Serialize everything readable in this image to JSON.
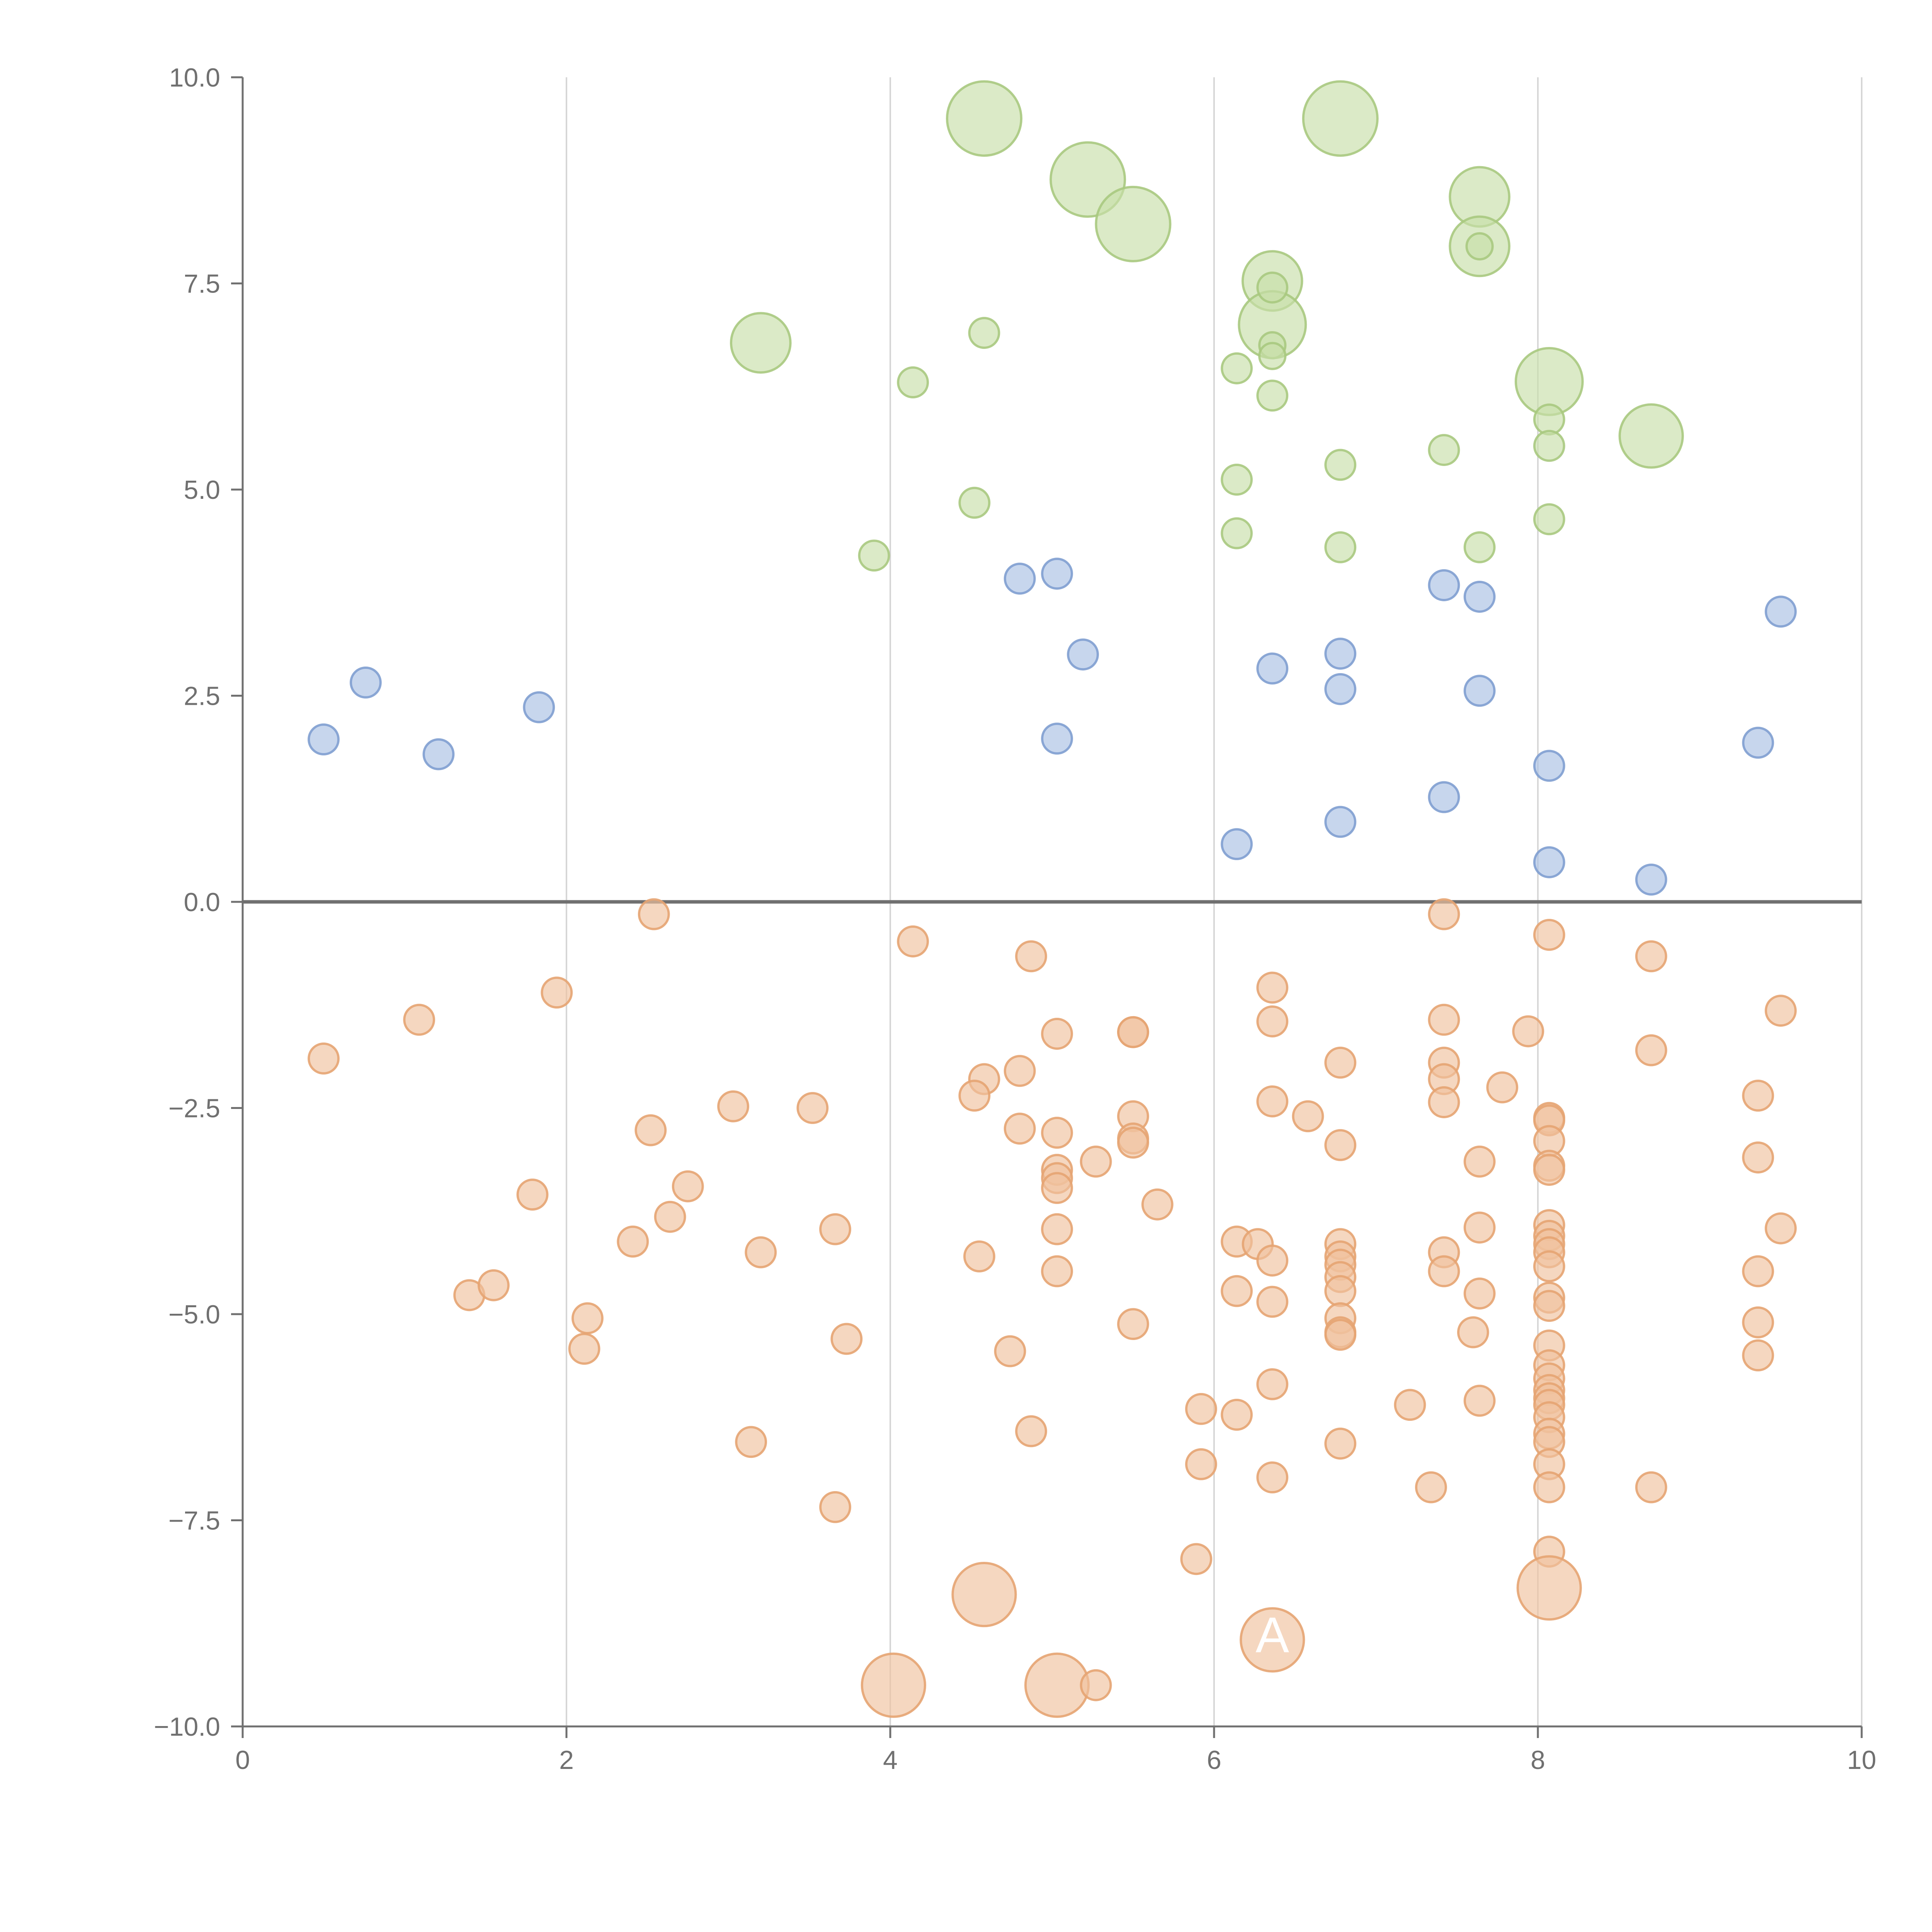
{
  "chart_data": {
    "type": "scatter",
    "title": "",
    "xlabel": "",
    "ylabel": "",
    "xlim": [
      0,
      10
    ],
    "ylim": [
      -10,
      10
    ],
    "x_ticks": [
      0,
      2,
      4,
      6,
      8,
      10
    ],
    "x_tick_labels": [
      "0",
      "2",
      "4",
      "6",
      "8",
      "10"
    ],
    "y_ticks": [
      10,
      7.5,
      5,
      2.5,
      0,
      -2.5,
      -5,
      -7.5,
      -10
    ],
    "y_tick_labels": [
      "10.0",
      "7.5",
      "5.0",
      "2.5",
      "0.0",
      "−2.5",
      "−5.0",
      "−7.5",
      "−10.0"
    ],
    "grid": "vertical",
    "zero_line": true,
    "series": [
      {
        "color": "#a9c97f",
        "fill": "#c8dea9",
        "points": [
          [
            4.58,
            9.5,
            2
          ],
          [
            6.78,
            9.5,
            2
          ],
          [
            5.22,
            8.76,
            2
          ],
          [
            5.5,
            8.22,
            2
          ],
          [
            7.64,
            8.55,
            1.6
          ],
          [
            7.64,
            7.95,
            1.6
          ],
          [
            7.64,
            7.95,
            0.7
          ],
          [
            6.36,
            7.53,
            1.6
          ],
          [
            6.36,
            7.0,
            1.8
          ],
          [
            3.2,
            6.78,
            1.6
          ],
          [
            8.07,
            6.31,
            1.8
          ],
          [
            8.7,
            5.65,
            1.7
          ],
          [
            6.36,
            7.45,
            0.8
          ],
          [
            6.36,
            6.75,
            0.7
          ],
          [
            6.36,
            6.62,
            0.7
          ],
          [
            4.58,
            6.9,
            0.8
          ],
          [
            4.14,
            6.3,
            0.8
          ],
          [
            6.14,
            6.47,
            0.8
          ],
          [
            6.36,
            6.14,
            0.8
          ],
          [
            8.07,
            5.85,
            0.8
          ],
          [
            8.07,
            5.53,
            0.8
          ],
          [
            7.42,
            5.48,
            0.8
          ],
          [
            6.78,
            5.3,
            0.8
          ],
          [
            6.14,
            5.12,
            0.8
          ],
          [
            4.52,
            4.84,
            0.8
          ],
          [
            6.14,
            4.47,
            0.8
          ],
          [
            6.78,
            4.3,
            0.8
          ],
          [
            7.64,
            4.3,
            0.8
          ],
          [
            8.07,
            4.64,
            0.8
          ],
          [
            3.9,
            4.2,
            0.8
          ]
        ]
      },
      {
        "color": "#7f9fd0",
        "fill": "#a9c0e3",
        "points": [
          [
            0.5,
            1.97,
            0.8
          ],
          [
            0.76,
            2.66,
            0.8
          ],
          [
            1.21,
            1.79,
            0.8
          ],
          [
            1.83,
            2.36,
            0.8
          ],
          [
            4.8,
            3.92,
            0.8
          ],
          [
            5.03,
            3.98,
            0.8
          ],
          [
            5.19,
            3.0,
            0.8
          ],
          [
            5.03,
            1.98,
            0.8
          ],
          [
            6.36,
            2.83,
            0.8
          ],
          [
            6.78,
            3.01,
            0.8
          ],
          [
            6.78,
            2.58,
            0.8
          ],
          [
            7.42,
            3.84,
            0.8
          ],
          [
            7.64,
            3.7,
            0.8
          ],
          [
            7.64,
            2.56,
            0.8
          ],
          [
            9.5,
            3.52,
            0.8
          ],
          [
            9.36,
            1.93,
            0.8
          ],
          [
            8.07,
            1.65,
            0.8
          ],
          [
            7.42,
            1.27,
            0.8
          ],
          [
            6.78,
            0.97,
            0.8
          ],
          [
            6.14,
            0.7,
            0.8
          ],
          [
            8.07,
            0.48,
            0.8
          ],
          [
            8.7,
            0.27,
            0.8
          ]
        ]
      },
      {
        "color": "#e6a472",
        "fill": "#f0c19e",
        "points": [
          [
            2.54,
            -0.15,
            0.8
          ],
          [
            4.14,
            -0.48,
            0.8
          ],
          [
            4.87,
            -0.66,
            0.8
          ],
          [
            1.94,
            -1.1,
            0.8
          ],
          [
            1.09,
            -1.43,
            0.8
          ],
          [
            0.5,
            -1.9,
            0.8
          ],
          [
            5.03,
            -1.6,
            0.8
          ],
          [
            5.5,
            -1.58,
            0.8
          ],
          [
            5.5,
            -1.58,
            0.8
          ],
          [
            6.36,
            -1.04,
            0.8
          ],
          [
            6.36,
            -1.45,
            0.8
          ],
          [
            6.78,
            -1.95,
            0.8
          ],
          [
            7.42,
            -0.15,
            0.8
          ],
          [
            7.42,
            -1.43,
            0.8
          ],
          [
            7.42,
            -1.95,
            0.8
          ],
          [
            7.42,
            -2.15,
            0.8
          ],
          [
            7.42,
            -2.43,
            0.8
          ],
          [
            7.94,
            -1.57,
            0.8
          ],
          [
            7.78,
            -2.25,
            0.8
          ],
          [
            8.07,
            -0.4,
            0.8
          ],
          [
            8.7,
            -0.66,
            0.8
          ],
          [
            8.7,
            -1.8,
            0.8
          ],
          [
            9.5,
            -1.32,
            0.8
          ],
          [
            4.8,
            -2.05,
            0.8
          ],
          [
            4.58,
            -2.15,
            0.8
          ],
          [
            4.52,
            -2.35,
            0.8
          ],
          [
            3.03,
            -2.48,
            0.8
          ],
          [
            3.52,
            -2.5,
            0.8
          ],
          [
            2.52,
            -2.77,
            0.8
          ],
          [
            4.8,
            -2.75,
            0.8
          ],
          [
            5.03,
            -2.8,
            0.8
          ],
          [
            5.5,
            -2.6,
            0.8
          ],
          [
            5.5,
            -2.87,
            0.8
          ],
          [
            5.5,
            -2.92,
            0.8
          ],
          [
            6.36,
            -2.42,
            0.8
          ],
          [
            6.58,
            -2.6,
            0.8
          ],
          [
            6.78,
            -2.95,
            0.8
          ],
          [
            8.07,
            -2.62,
            0.8
          ],
          [
            8.07,
            -2.65,
            0.8
          ],
          [
            8.07,
            -2.9,
            0.8
          ],
          [
            8.07,
            -3.2,
            0.8
          ],
          [
            8.07,
            -3.25,
            0.8
          ],
          [
            9.36,
            -2.35,
            0.8
          ],
          [
            9.36,
            -3.1,
            0.8
          ],
          [
            7.64,
            -3.15,
            0.8
          ],
          [
            5.27,
            -3.15,
            0.8
          ],
          [
            5.03,
            -3.25,
            0.8
          ],
          [
            5.03,
            -3.35,
            0.8
          ],
          [
            5.03,
            -3.47,
            0.8
          ],
          [
            2.75,
            -3.45,
            0.8
          ],
          [
            1.79,
            -3.55,
            0.8
          ],
          [
            5.65,
            -3.67,
            0.8
          ],
          [
            2.64,
            -3.82,
            0.8
          ],
          [
            2.41,
            -4.12,
            0.8
          ],
          [
            3.66,
            -3.97,
            0.8
          ],
          [
            3.2,
            -4.25,
            0.8
          ],
          [
            5.03,
            -3.97,
            0.8
          ],
          [
            4.55,
            -4.3,
            0.8
          ],
          [
            6.14,
            -4.12,
            0.8
          ],
          [
            6.27,
            -4.15,
            0.8
          ],
          [
            6.36,
            -4.35,
            0.8
          ],
          [
            6.78,
            -4.15,
            0.8
          ],
          [
            6.78,
            -4.3,
            0.8
          ],
          [
            6.78,
            -4.4,
            0.8
          ],
          [
            6.78,
            -4.55,
            0.8
          ],
          [
            6.78,
            -4.72,
            0.8
          ],
          [
            7.42,
            -4.25,
            0.8
          ],
          [
            7.42,
            -4.48,
            0.8
          ],
          [
            7.64,
            -3.95,
            0.8
          ],
          [
            7.64,
            -4.75,
            0.8
          ],
          [
            8.07,
            -3.92,
            0.8
          ],
          [
            8.07,
            -4.05,
            0.8
          ],
          [
            8.07,
            -4.15,
            0.8
          ],
          [
            8.07,
            -4.25,
            0.8
          ],
          [
            8.07,
            -4.42,
            0.8
          ],
          [
            8.07,
            -4.8,
            0.8
          ],
          [
            8.07,
            -4.9,
            0.8
          ],
          [
            9.5,
            -3.96,
            0.8
          ],
          [
            9.36,
            -4.48,
            0.8
          ],
          [
            9.36,
            -5.1,
            0.8
          ],
          [
            9.36,
            -5.5,
            0.8
          ],
          [
            5.03,
            -4.48,
            0.8
          ],
          [
            1.4,
            -4.77,
            0.8
          ],
          [
            1.55,
            -4.65,
            0.8
          ],
          [
            2.13,
            -5.05,
            0.8
          ],
          [
            2.11,
            -5.42,
            0.8
          ],
          [
            3.73,
            -5.3,
            0.8
          ],
          [
            4.74,
            -5.45,
            0.8
          ],
          [
            5.5,
            -5.12,
            0.8
          ],
          [
            6.14,
            -4.72,
            0.8
          ],
          [
            6.36,
            -4.85,
            0.8
          ],
          [
            6.78,
            -5.05,
            0.8
          ],
          [
            6.78,
            -5.22,
            0.8
          ],
          [
            6.78,
            -5.25,
            0.8
          ],
          [
            7.6,
            -5.22,
            0.8
          ],
          [
            8.07,
            -5.38,
            0.8
          ],
          [
            8.07,
            -5.62,
            0.8
          ],
          [
            8.07,
            -5.78,
            0.8
          ],
          [
            8.07,
            -5.92,
            0.8
          ],
          [
            8.07,
            -6.02,
            0.8
          ],
          [
            8.07,
            -6.1,
            0.8
          ],
          [
            8.07,
            -6.25,
            0.8
          ],
          [
            8.07,
            -6.45,
            0.8
          ],
          [
            8.07,
            -6.55,
            0.8
          ],
          [
            8.07,
            -6.82,
            0.8
          ],
          [
            8.07,
            -7.1,
            0.8
          ],
          [
            8.07,
            -7.88,
            0.8
          ],
          [
            6.36,
            -5.85,
            0.8
          ],
          [
            7.64,
            -6.05,
            0.8
          ],
          [
            7.21,
            -6.1,
            0.8
          ],
          [
            5.92,
            -6.15,
            0.8
          ],
          [
            6.14,
            -6.22,
            0.8
          ],
          [
            3.14,
            -6.55,
            0.8
          ],
          [
            4.87,
            -6.42,
            0.8
          ],
          [
            6.78,
            -6.57,
            0.8
          ],
          [
            5.92,
            -6.82,
            0.8
          ],
          [
            6.36,
            -6.98,
            0.8
          ],
          [
            7.34,
            -7.1,
            0.8
          ],
          [
            8.7,
            -7.1,
            0.8
          ],
          [
            3.66,
            -7.34,
            0.8
          ],
          [
            5.89,
            -7.97,
            0.8
          ],
          [
            4.58,
            -8.4,
            1.7
          ],
          [
            8.07,
            -8.32,
            1.7
          ],
          [
            6.36,
            -8.95,
            1.7
          ],
          [
            4.02,
            -9.5,
            1.7
          ],
          [
            5.03,
            -9.5,
            1.7
          ],
          [
            5.27,
            -9.5,
            0.8
          ]
        ]
      }
    ],
    "annotations": [
      {
        "text": "A",
        "x": 6.36,
        "y": -9.1
      }
    ]
  }
}
